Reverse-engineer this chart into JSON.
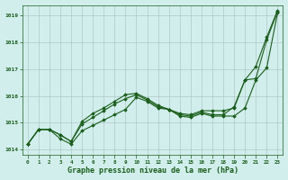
{
  "title": "Graphe pression niveau de la mer (hPa)",
  "bg_color": "#d1eeec",
  "line_color": "#1a5e1a",
  "grid_color": "#b0c8c8",
  "xlim": [
    -0.5,
    23.5
  ],
  "ylim": [
    1013.8,
    1019.4
  ],
  "yticks": [
    1014,
    1015,
    1016,
    1017,
    1018,
    1019
  ],
  "xticks": [
    0,
    1,
    2,
    3,
    4,
    5,
    6,
    7,
    8,
    9,
    10,
    11,
    12,
    13,
    14,
    15,
    16,
    17,
    18,
    19,
    20,
    21,
    22,
    23
  ],
  "series": [
    [
      1014.2,
      1014.75,
      1014.75,
      1014.4,
      1014.2,
      1014.7,
      1014.9,
      1015.1,
      1015.3,
      1015.5,
      1015.95,
      1015.8,
      1015.55,
      1015.5,
      1015.25,
      1015.2,
      1015.35,
      1015.25,
      1015.25,
      1015.25,
      1015.55,
      1016.6,
      1017.05,
      1019.1
    ],
    [
      1014.2,
      1014.75,
      1014.75,
      1014.55,
      1014.3,
      1014.95,
      1015.2,
      1015.45,
      1015.7,
      1015.9,
      1016.05,
      1015.85,
      1015.6,
      1015.5,
      1015.3,
      1015.25,
      1015.4,
      1015.3,
      1015.3,
      1015.6,
      1016.6,
      1016.65,
      1018.1,
      1019.15
    ],
    [
      1014.2,
      1014.75,
      1014.75,
      1014.55,
      1014.3,
      1015.05,
      1015.35,
      1015.55,
      1015.8,
      1016.05,
      1016.1,
      1015.9,
      1015.65,
      1015.5,
      1015.35,
      1015.3,
      1015.45,
      1015.45,
      1015.45,
      1015.55,
      1016.6,
      1017.1,
      1018.2,
      1019.2
    ]
  ]
}
